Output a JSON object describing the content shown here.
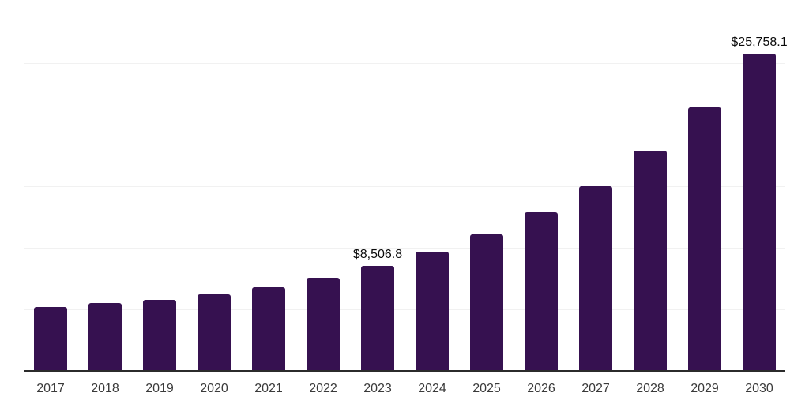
{
  "chart_data": {
    "type": "bar",
    "title": "",
    "xlabel": "",
    "ylabel": "",
    "categories": [
      "2017",
      "2018",
      "2019",
      "2020",
      "2021",
      "2022",
      "2023",
      "2024",
      "2025",
      "2026",
      "2027",
      "2028",
      "2029",
      "2030"
    ],
    "values": [
      5200,
      5510,
      5780,
      6230,
      6790,
      7560,
      8506.8,
      9680,
      11080,
      12880,
      15000,
      17880,
      21400,
      25758.1
    ],
    "value_labels": {
      "2023": "$8,506.8",
      "2030": "$25,758.1"
    },
    "ylim": [
      0,
      30000
    ],
    "gridline_step": 5000,
    "grid": "horizontal",
    "legend_position": "none",
    "colors": {
      "bar": "#361150",
      "gridline": "#f1f1f1",
      "axis_line": "#2b2b2b",
      "tick_label": "#3a3a3a",
      "data_label": "#0a0a0a"
    }
  }
}
